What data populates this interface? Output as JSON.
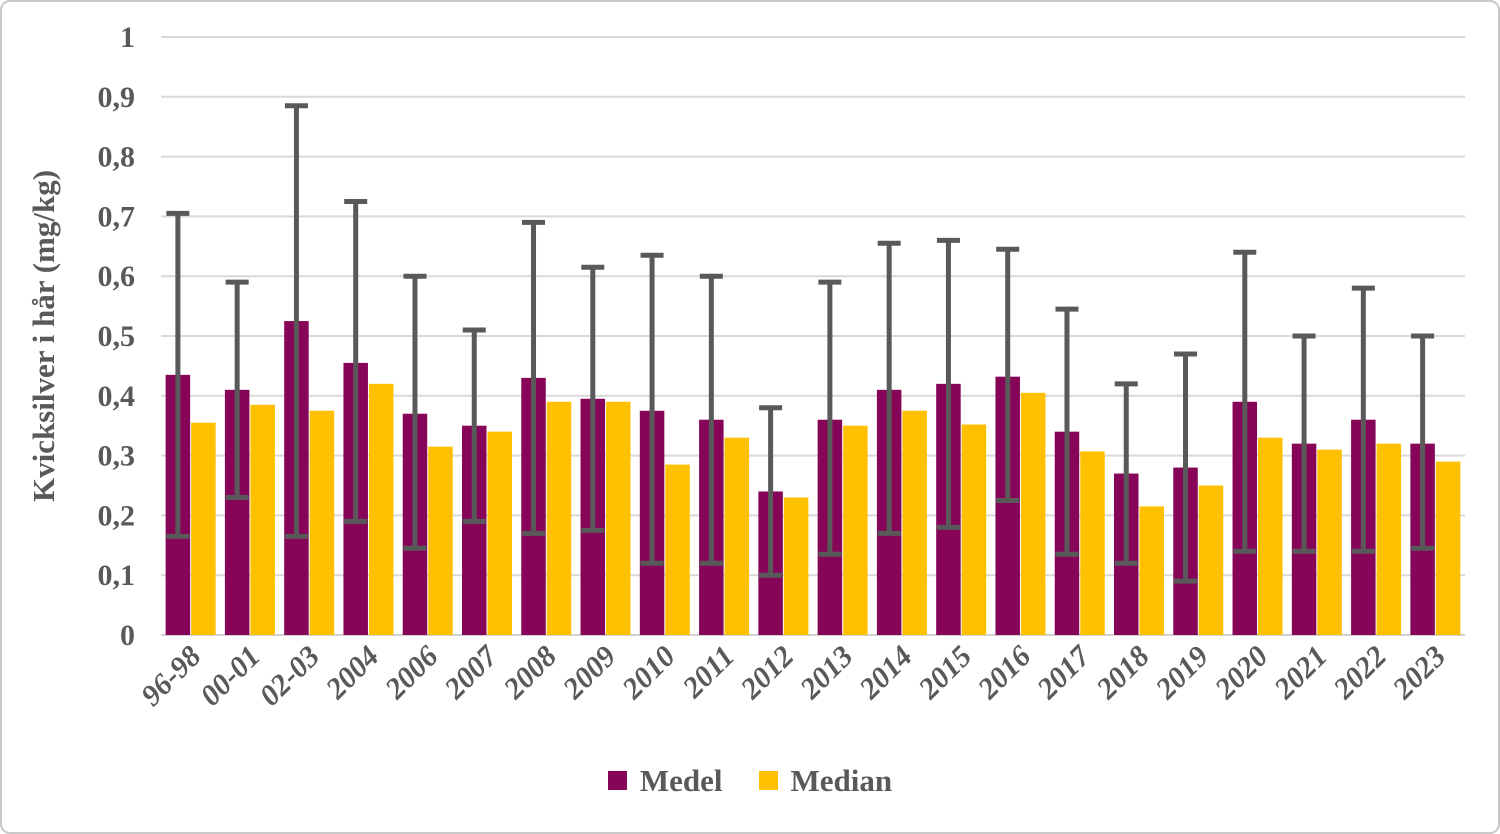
{
  "figure": {
    "background": "#ffffff",
    "border_color": "#c9c9c9"
  },
  "chart_data": {
    "type": "bar",
    "title": "",
    "xlabel": "",
    "ylabel": "Kvicksilver i hår (mg/kg)",
    "ylim": [
      0,
      1
    ],
    "y_tick_step": 0.1,
    "y_tick_labels": [
      "0",
      "0,1",
      "0,2",
      "0,3",
      "0,4",
      "0,5",
      "0,6",
      "0,7",
      "0,8",
      "0,9",
      "1"
    ],
    "grid": true,
    "legend_position": "bottom",
    "text_color": "#595959",
    "gridline_color": "#d9d9d9",
    "axis_line_color": "#d2d2d2",
    "error_bar_color": "#595959",
    "categories": [
      "96-98",
      "00-01",
      "02-03",
      "2004",
      "2006",
      "2007",
      "2008",
      "2009",
      "2010",
      "2011",
      "2012",
      "2013",
      "2014",
      "2015",
      "2016",
      "2017",
      "2018",
      "2019",
      "2020",
      "2021",
      "2022",
      "2023"
    ],
    "series": [
      {
        "name": "Medel",
        "color": "#870559",
        "values": [
          0.435,
          0.41,
          0.525,
          0.455,
          0.37,
          0.35,
          0.43,
          0.395,
          0.375,
          0.36,
          0.24,
          0.36,
          0.41,
          0.42,
          0.432,
          0.34,
          0.27,
          0.28,
          0.39,
          0.32,
          0.36,
          0.32
        ],
        "error_low": [
          0.165,
          0.23,
          0.165,
          0.19,
          0.145,
          0.19,
          0.17,
          0.175,
          0.12,
          0.12,
          0.1,
          0.135,
          0.17,
          0.18,
          0.225,
          0.135,
          0.12,
          0.09,
          0.14,
          0.14,
          0.14,
          0.145
        ],
        "error_high": [
          0.705,
          0.59,
          0.885,
          0.725,
          0.6,
          0.51,
          0.69,
          0.615,
          0.635,
          0.6,
          0.38,
          0.59,
          0.655,
          0.66,
          0.645,
          0.545,
          0.42,
          0.47,
          0.64,
          0.5,
          0.58,
          0.5
        ]
      },
      {
        "name": "Median",
        "color": "#ffc000",
        "values": [
          0.355,
          0.385,
          0.375,
          0.42,
          0.315,
          0.34,
          0.39,
          0.39,
          0.285,
          0.33,
          0.23,
          0.35,
          0.375,
          0.352,
          0.405,
          0.307,
          0.215,
          0.25,
          0.33,
          0.31,
          0.32,
          0.29
        ]
      }
    ]
  }
}
